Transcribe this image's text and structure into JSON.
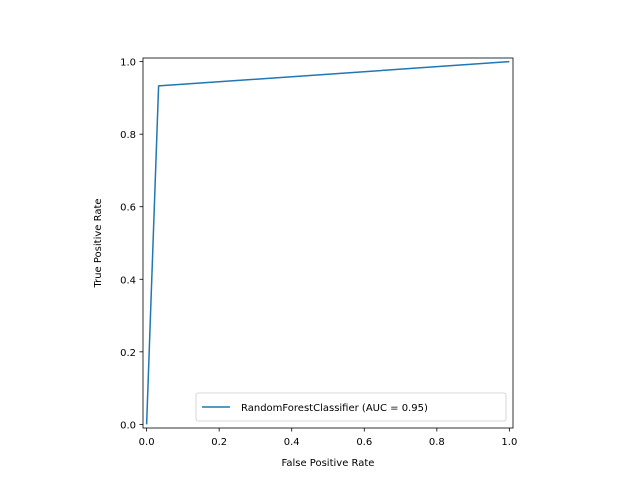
{
  "chart_data": {
    "type": "line",
    "title": "",
    "xlabel": "False Positive Rate",
    "ylabel": "True Positive Rate",
    "xlim": [
      -0.01,
      1.01
    ],
    "ylim": [
      -0.01,
      1.01
    ],
    "x_ticks": [
      0.0,
      0.2,
      0.4,
      0.6,
      0.8,
      1.0
    ],
    "y_ticks": [
      0.0,
      0.2,
      0.4,
      0.6,
      0.8,
      1.0
    ],
    "x_tick_labels": [
      "0.0",
      "0.2",
      "0.4",
      "0.6",
      "0.8",
      "1.0"
    ],
    "y_tick_labels": [
      "0.0",
      "0.2",
      "0.4",
      "0.6",
      "0.8",
      "1.0"
    ],
    "grid": false,
    "legend_position": "lower-right",
    "series": [
      {
        "name": "RandomForestClassifier (AUC = 0.95)",
        "color": "#1f77b4",
        "x": [
          0.0,
          0.033,
          1.0
        ],
        "y": [
          0.0,
          0.933,
          1.0
        ]
      }
    ]
  }
}
